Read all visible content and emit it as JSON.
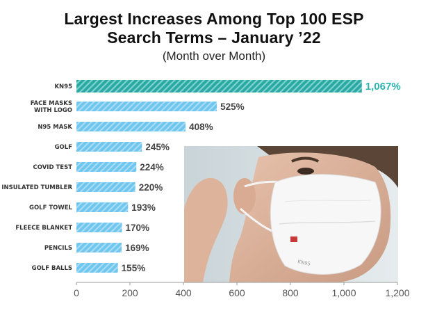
{
  "header": {
    "title_line1": "Largest Increases Among Top 100 ESP",
    "title_line2": "Search Terms – January ’22",
    "subtitle": "(Month over Month)"
  },
  "chart_data": {
    "type": "bar",
    "orientation": "horizontal",
    "title": "Largest Increases Among Top 100 ESP Search Terms – January ’22",
    "subtitle": "(Month over Month)",
    "categories": [
      "KN95",
      "FACE MASKS\nWITH LOGO",
      "N95 MASK",
      "GOLF",
      "COVID TEST",
      "INSULATED TUMBLER",
      "GOLF TOWEL",
      "FLEECE BLANKET",
      "PENCILS",
      "GOLF BALLS"
    ],
    "values": [
      1067,
      525,
      408,
      245,
      224,
      220,
      193,
      170,
      169,
      155
    ],
    "value_labels": [
      "1,067%",
      "525%",
      "408%",
      "245%",
      "224%",
      "220%",
      "193%",
      "170%",
      "169%",
      "155%"
    ],
    "xlim": [
      0,
      1200
    ],
    "x_ticks": [
      0,
      200,
      400,
      600,
      800,
      1000,
      1200
    ],
    "x_tick_labels": [
      "0",
      "200",
      "400",
      "600",
      "800",
      "1,000",
      "1,200"
    ],
    "grid": false,
    "highlight_index": 0,
    "colors": {
      "bar": "#6ec6ee",
      "bar_stripe": "#a9dcf5",
      "highlight_bar": "#2aa8a3",
      "highlight_stripe": "#7fd3cf",
      "highlight_label": "#2bb3ad"
    }
  },
  "photo": {
    "icon": "person-wearing-kn95-mask-photo",
    "mask_print": "KN95"
  }
}
